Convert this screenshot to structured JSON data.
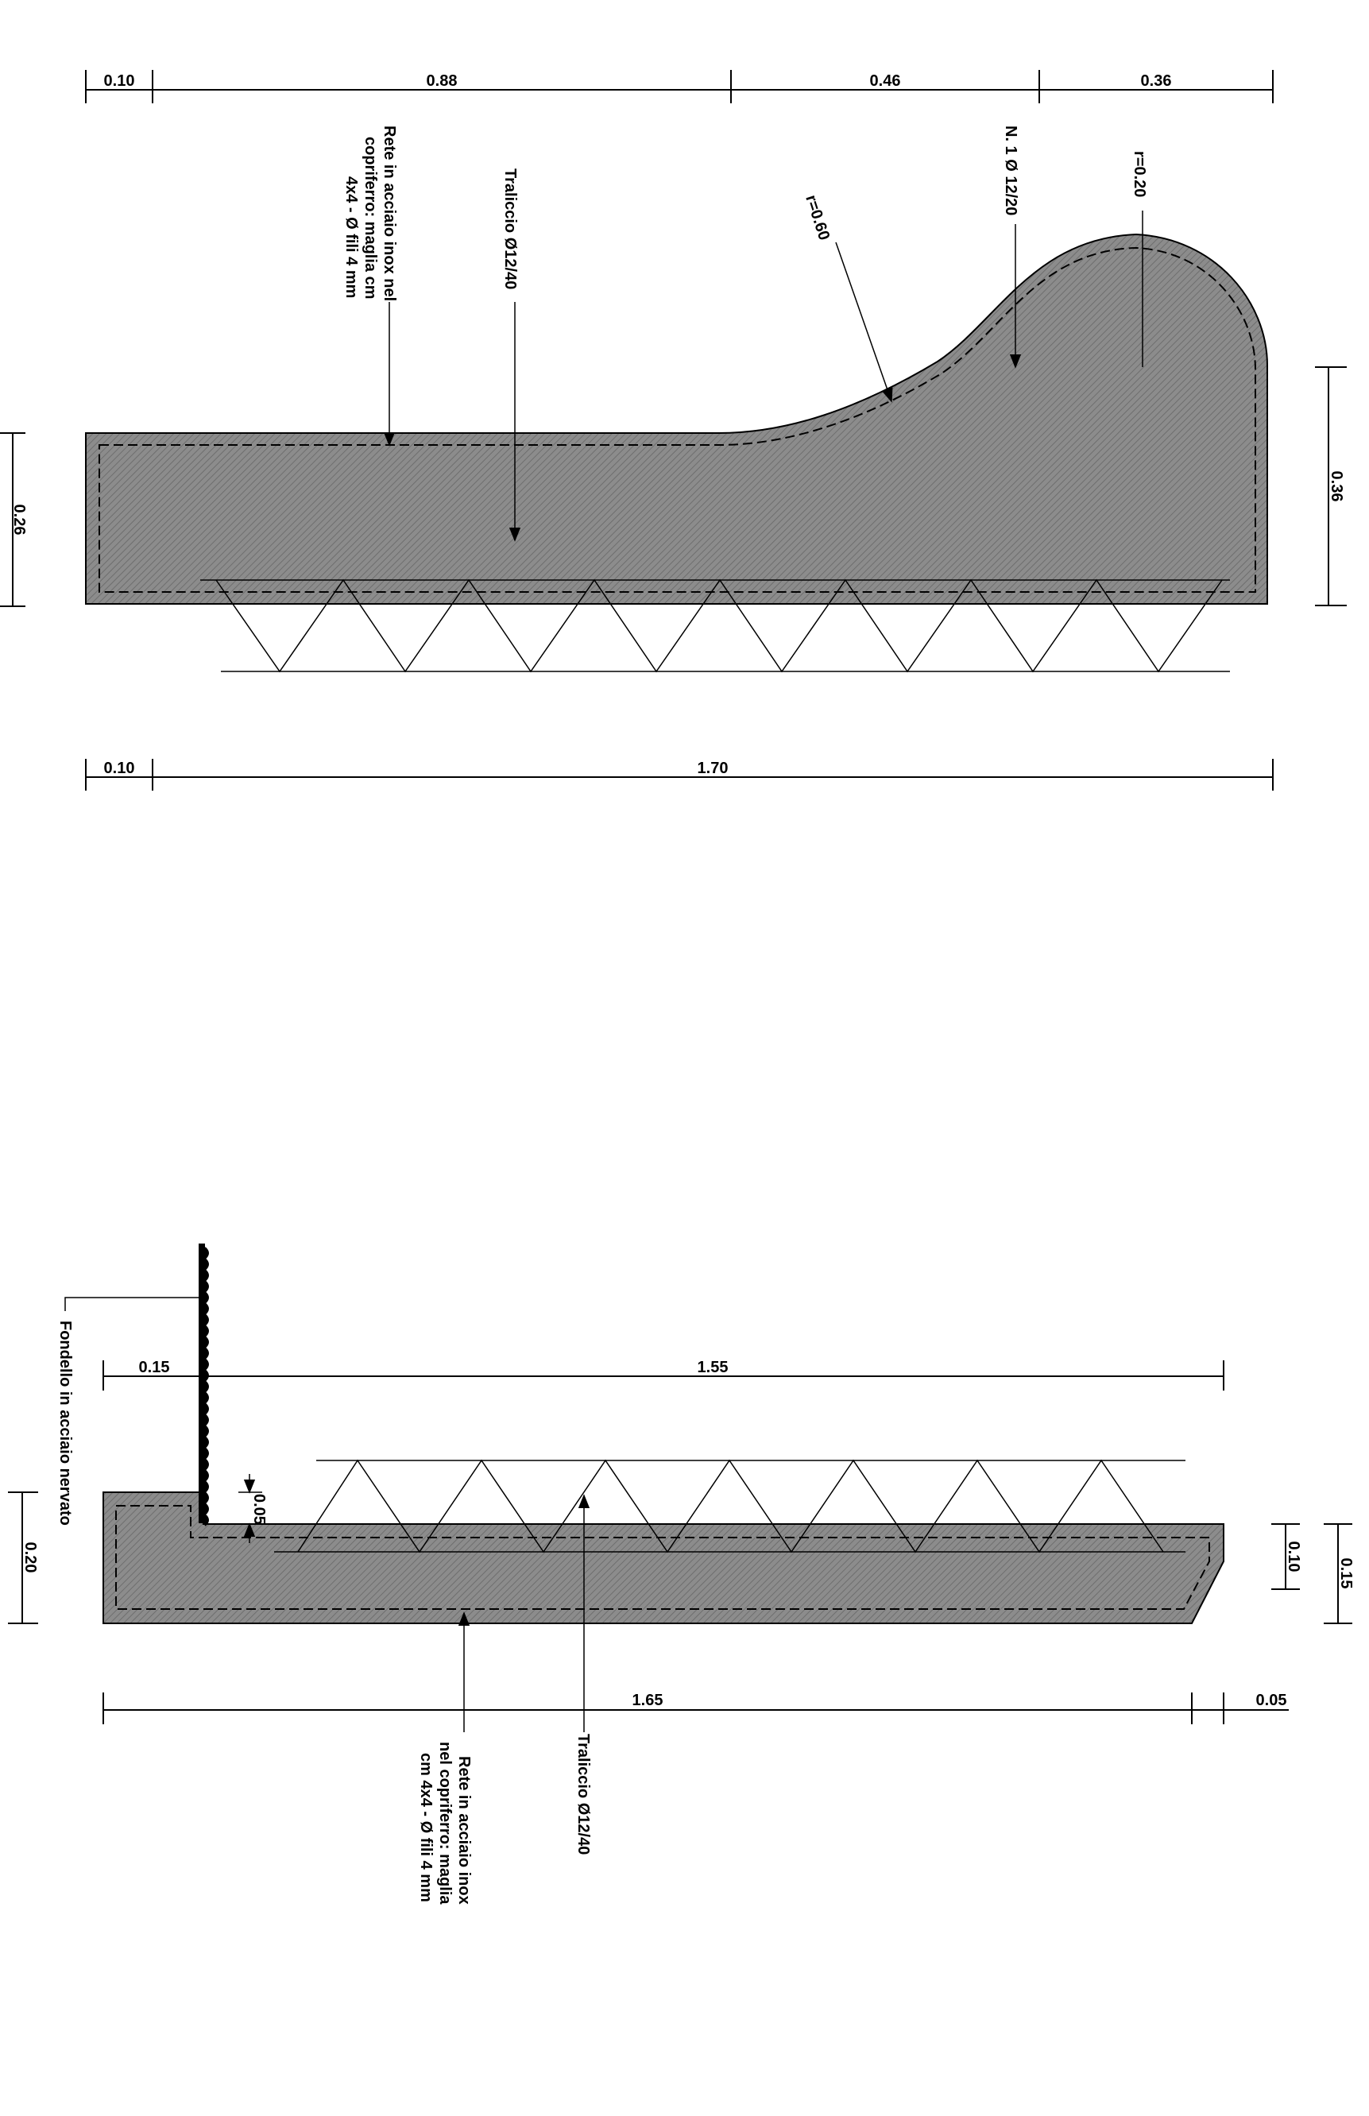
{
  "section_top": {
    "dims_top": [
      "0.10",
      "0.88",
      "0.46",
      "0.36"
    ],
    "dims_bottom": [
      "0.10",
      "1.70"
    ],
    "dim_left": "0.26",
    "dim_right": "0.36",
    "radius_large": "r=0.60",
    "radius_small": "r=0.20",
    "label_rete": [
      "Rete in acciaio inox nel",
      "copriferro: maglia cm",
      "4x4 - Ø fili 4 mm"
    ],
    "label_traliccio": "Traliccio Ø12/40",
    "label_bar": "N. 1 Ø 12/20"
  },
  "section_bottom": {
    "dim_top_left": "0.15",
    "dim_top_main": "1.55",
    "dim_step": "0.05",
    "dim_left": "0.20",
    "dim_right_inner": "0.10",
    "dim_right_outer": "0.15",
    "dim_bottom_main": "1.65",
    "dim_bottom_right": "0.05",
    "label_fondello": "Fondello in acciaio nervato",
    "label_rete": [
      "Rete in acciaio inox",
      "nel copriferro: maglia",
      "cm 4x4 - Ø fili 4 mm"
    ],
    "label_traliccio": "Traliccio Ø12/40"
  },
  "colors": {
    "hatch_fill": "#8c8c8c",
    "line": "#000000",
    "background": "#ffffff"
  }
}
